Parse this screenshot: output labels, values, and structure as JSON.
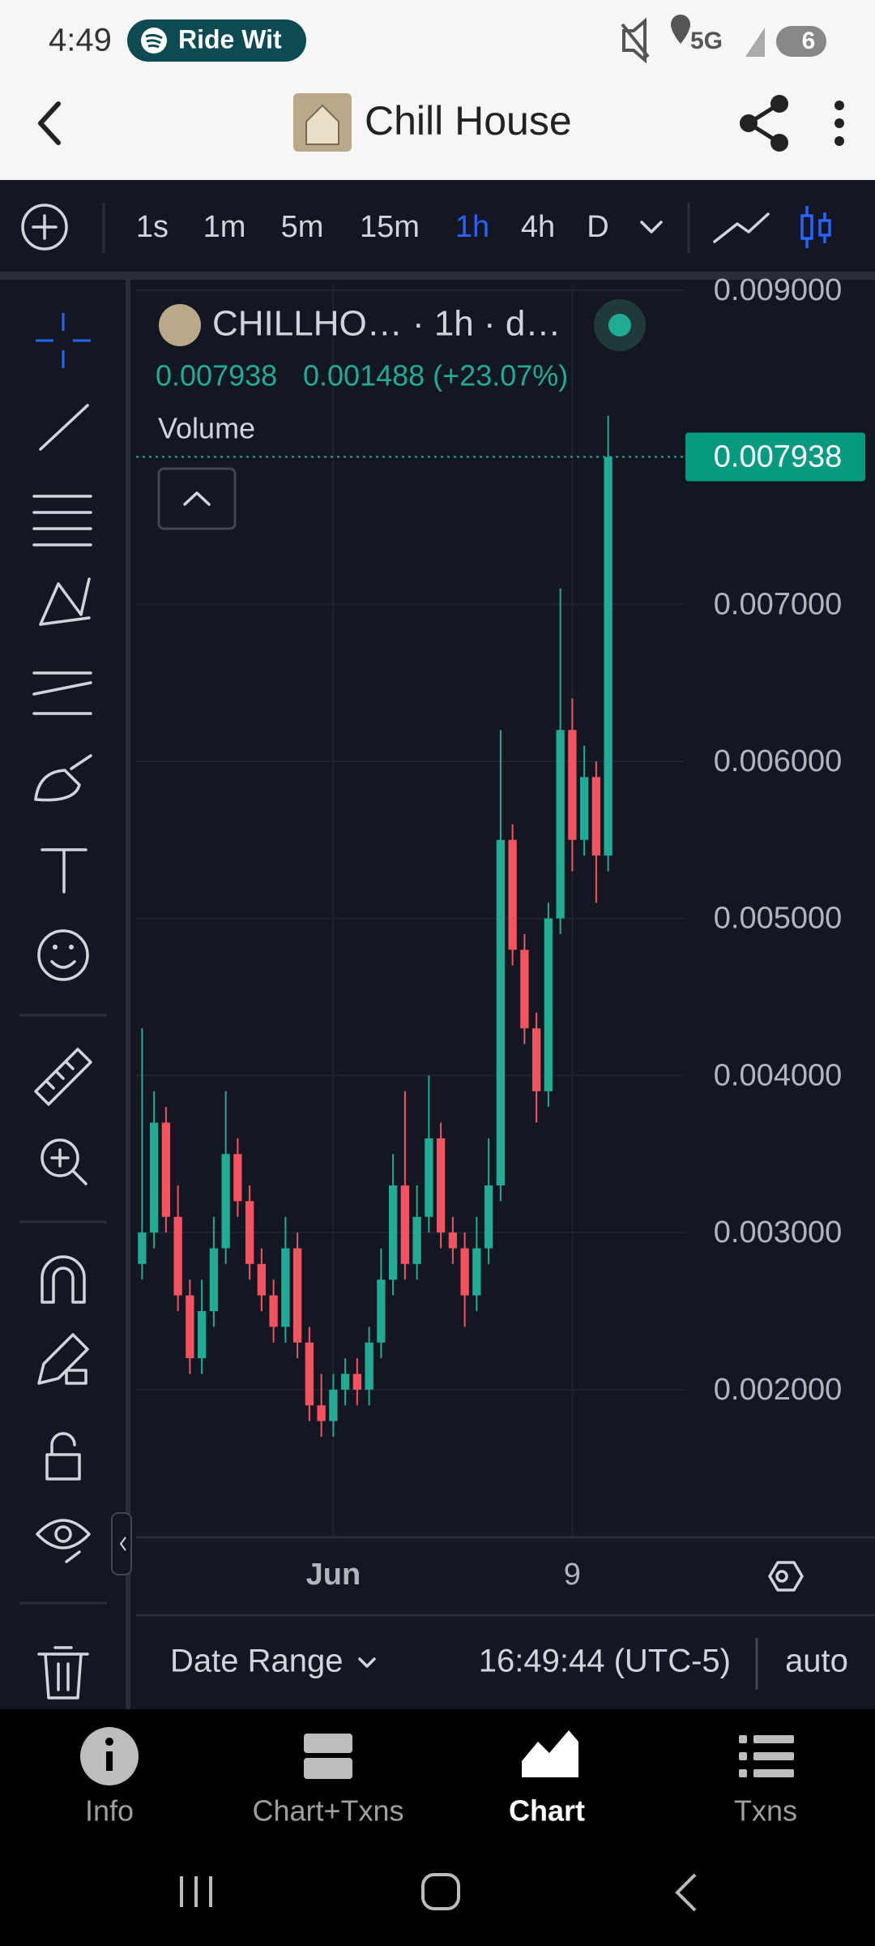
{
  "status_bar": {
    "time": "4:49",
    "media": "Ride Wit",
    "network": "5G",
    "battery": "6"
  },
  "header": {
    "title": "Chill House"
  },
  "timeframes": {
    "items": [
      "1s",
      "1m",
      "5m",
      "15m",
      "1h",
      "4h",
      "D"
    ],
    "active": "1h"
  },
  "chart_data": {
    "type": "candlestick",
    "legend_title": "CHILLHO… · 1h · d…",
    "legend_change": "0.001488 (+23.07%)",
    "volume_label": "Volume",
    "last_price": 0.007938,
    "up_color": "#22ab94",
    "down_color": "#f7525f",
    "grid": true,
    "ylim": [
      0.00107,
      0.00903
    ],
    "yticks": [
      {
        "value": 0.009,
        "label": "0.009000"
      },
      {
        "value": 0.007,
        "label": "0.007000"
      },
      {
        "value": 0.006,
        "label": "0.006000"
      },
      {
        "value": 0.005,
        "label": "0.005000"
      },
      {
        "value": 0.004,
        "label": "0.004000"
      },
      {
        "value": 0.003,
        "label": "0.003000"
      },
      {
        "value": 0.002,
        "label": "0.002000"
      }
    ],
    "categories": [
      null,
      null,
      null,
      null,
      null,
      null,
      null,
      null,
      null,
      null,
      null,
      null,
      null,
      null,
      null,
      null,
      "Jun",
      null,
      null,
      null,
      null,
      null,
      null,
      null,
      null,
      null,
      null,
      null,
      null,
      null,
      null,
      null,
      null,
      null,
      null,
      null,
      "9",
      null,
      null,
      null
    ],
    "open": [
      0.0028,
      0.003,
      0.0037,
      0.0031,
      0.0026,
      0.0022,
      0.0025,
      0.0029,
      0.0035,
      0.0032,
      0.0028,
      0.0026,
      0.0024,
      0.0029,
      0.0023,
      0.0019,
      0.0018,
      0.002,
      0.0021,
      0.002,
      0.0023,
      0.0027,
      0.0033,
      0.0028,
      0.0031,
      0.0036,
      0.003,
      0.0029,
      0.0026,
      0.0029,
      0.0033,
      0.0055,
      0.0048,
      0.0043,
      0.0039,
      0.005,
      0.0062,
      0.0055,
      0.0059,
      0.0054
    ],
    "high": [
      0.0043,
      0.0039,
      0.0038,
      0.0033,
      0.0027,
      0.0027,
      0.0031,
      0.0039,
      0.0036,
      0.0033,
      0.0029,
      0.0027,
      0.0031,
      0.003,
      0.0024,
      0.0021,
      0.0021,
      0.0022,
      0.0022,
      0.0024,
      0.0029,
      0.0035,
      0.0039,
      0.0033,
      0.004,
      0.0037,
      0.0031,
      0.003,
      0.0031,
      0.0036,
      0.0062,
      0.0056,
      0.0049,
      0.0044,
      0.0051,
      0.0071,
      0.0064,
      0.0061,
      0.006,
      0.0082
    ],
    "low": [
      0.0027,
      0.0029,
      0.003,
      0.0025,
      0.0021,
      0.0021,
      0.0024,
      0.0028,
      0.0031,
      0.0027,
      0.0025,
      0.0023,
      0.0023,
      0.0022,
      0.0018,
      0.0017,
      0.0017,
      0.0019,
      0.0019,
      0.0019,
      0.0022,
      0.0026,
      0.0027,
      0.0027,
      0.003,
      0.0029,
      0.0028,
      0.0024,
      0.0025,
      0.0028,
      0.0032,
      0.0047,
      0.0042,
      0.0037,
      0.0038,
      0.0049,
      0.0053,
      0.0054,
      0.0051,
      0.0053
    ],
    "close": [
      0.003,
      0.0037,
      0.0031,
      0.0026,
      0.0022,
      0.0025,
      0.0029,
      0.0035,
      0.0032,
      0.0028,
      0.0026,
      0.0024,
      0.0029,
      0.0023,
      0.0019,
      0.0018,
      0.002,
      0.0021,
      0.002,
      0.0023,
      0.0027,
      0.0033,
      0.0028,
      0.0031,
      0.0036,
      0.003,
      0.0029,
      0.0026,
      0.0029,
      0.0033,
      0.0055,
      0.0048,
      0.0043,
      0.0039,
      0.005,
      0.0062,
      0.0055,
      0.0059,
      0.0054,
      0.007938
    ]
  },
  "footer": {
    "date_range": "Date Range",
    "time": "16:49:44 (UTC-5)",
    "scale": "auto"
  },
  "tabs": {
    "items": [
      "Info",
      "Chart+Txns",
      "Chart",
      "Txns"
    ],
    "active": "Chart"
  }
}
